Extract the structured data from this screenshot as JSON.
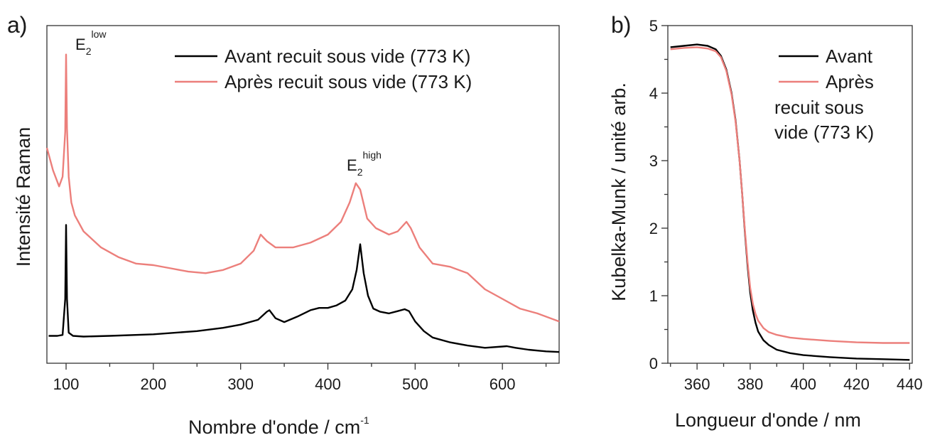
{
  "panels": {
    "a": {
      "label": "a)"
    },
    "b": {
      "label": "b)"
    }
  },
  "colors": {
    "avant": "#000000",
    "apres": "#ec7f7b",
    "axis": "#333333"
  },
  "chart_data": [
    {
      "type": "line",
      "panel": "a",
      "title": "",
      "xlabel": "Nombre d'onde / cm",
      "xlabel_superscript": "-1",
      "ylabel": "Intensité Raman",
      "xlim": [
        78,
        665
      ],
      "ylim": [
        0,
        1.05
      ],
      "xticks": [
        100,
        200,
        300,
        400,
        500,
        600
      ],
      "yticks_shown": false,
      "legend": {
        "placement": "top-center",
        "entries": [
          "Avant recuit sous vide (773 K)",
          "Après recuit sous vide (773 K)"
        ]
      },
      "annotations": [
        {
          "base": "E",
          "sub": "2",
          "sup": "low",
          "x": 100,
          "y": 0.96
        },
        {
          "base": "E",
          "sub": "2",
          "sup": "high",
          "x": 437,
          "y": 0.6
        }
      ],
      "series": [
        {
          "name": "Avant recuit sous vide (773 K)",
          "color": "#000000",
          "x": [
            80,
            90,
            96,
            99,
            100,
            101,
            103,
            108,
            120,
            150,
            200,
            250,
            280,
            300,
            320,
            330,
            333,
            340,
            350,
            365,
            380,
            390,
            400,
            410,
            420,
            428,
            433,
            437,
            441,
            446,
            452,
            460,
            470,
            480,
            488,
            493,
            500,
            510,
            520,
            540,
            560,
            580,
            600,
            605,
            615,
            630,
            650,
            665
          ],
          "y": [
            0.085,
            0.085,
            0.088,
            0.2,
            0.43,
            0.2,
            0.095,
            0.085,
            0.083,
            0.085,
            0.09,
            0.1,
            0.11,
            0.12,
            0.135,
            0.16,
            0.165,
            0.14,
            0.128,
            0.145,
            0.165,
            0.172,
            0.172,
            0.18,
            0.195,
            0.23,
            0.29,
            0.37,
            0.28,
            0.21,
            0.17,
            0.16,
            0.155,
            0.162,
            0.168,
            0.162,
            0.13,
            0.1,
            0.08,
            0.065,
            0.055,
            0.048,
            0.052,
            0.053,
            0.048,
            0.042,
            0.037,
            0.035
          ]
        },
        {
          "name": "Après recuit sous vide (773 K)",
          "color": "#ec7f7b",
          "x": [
            78,
            85,
            92,
            96,
            99,
            100,
            101,
            103,
            106,
            110,
            120,
            140,
            160,
            180,
            200,
            220,
            240,
            260,
            280,
            300,
            315,
            323,
            330,
            340,
            360,
            380,
            400,
            415,
            425,
            432,
            437,
            445,
            455,
            470,
            480,
            490,
            495,
            505,
            520,
            540,
            560,
            580,
            600,
            620,
            640,
            665
          ],
          "y": [
            0.67,
            0.6,
            0.55,
            0.58,
            0.72,
            0.96,
            0.73,
            0.58,
            0.5,
            0.46,
            0.41,
            0.36,
            0.33,
            0.31,
            0.305,
            0.295,
            0.285,
            0.28,
            0.29,
            0.31,
            0.35,
            0.4,
            0.38,
            0.36,
            0.36,
            0.375,
            0.4,
            0.44,
            0.5,
            0.56,
            0.54,
            0.45,
            0.42,
            0.4,
            0.41,
            0.44,
            0.42,
            0.36,
            0.31,
            0.3,
            0.28,
            0.23,
            0.2,
            0.17,
            0.155,
            0.13
          ]
        }
      ]
    },
    {
      "type": "line",
      "panel": "b",
      "title": "",
      "xlabel": "Longueur d'onde / nm",
      "ylabel": "Kubelka-Munk / unité arb.",
      "xlim": [
        349,
        441
      ],
      "ylim": [
        0,
        5
      ],
      "xticks": [
        360,
        380,
        400,
        420,
        440
      ],
      "yticks": [
        0,
        1,
        2,
        3,
        4,
        5
      ],
      "legend": {
        "placement": "top-right",
        "entries": [
          "Avant",
          "Après",
          "recuit sous",
          "vide (773 K)"
        ]
      },
      "series": [
        {
          "name": "Avant",
          "color": "#000000",
          "x": [
            350,
            355,
            360,
            364,
            367,
            369,
            371,
            373,
            374.5,
            376,
            377,
            378,
            379,
            380,
            381,
            382,
            383,
            385,
            387,
            390,
            395,
            400,
            410,
            420,
            430,
            440
          ],
          "y": [
            4.68,
            4.7,
            4.72,
            4.7,
            4.65,
            4.55,
            4.35,
            4.0,
            3.6,
            3.0,
            2.5,
            1.95,
            1.45,
            1.05,
            0.78,
            0.6,
            0.47,
            0.34,
            0.27,
            0.2,
            0.15,
            0.12,
            0.09,
            0.07,
            0.06,
            0.05
          ]
        },
        {
          "name": "Après",
          "color": "#ec7f7b",
          "x": [
            350,
            355,
            360,
            364,
            367,
            369,
            371,
            373,
            374.5,
            376,
            377,
            378,
            379,
            380,
            381,
            382,
            383,
            385,
            387,
            390,
            395,
            400,
            410,
            420,
            430,
            440
          ],
          "y": [
            4.65,
            4.67,
            4.68,
            4.66,
            4.62,
            4.53,
            4.33,
            3.98,
            3.58,
            3.0,
            2.5,
            1.98,
            1.5,
            1.12,
            0.88,
            0.73,
            0.63,
            0.52,
            0.46,
            0.42,
            0.38,
            0.36,
            0.33,
            0.31,
            0.3,
            0.3
          ]
        }
      ]
    }
  ]
}
